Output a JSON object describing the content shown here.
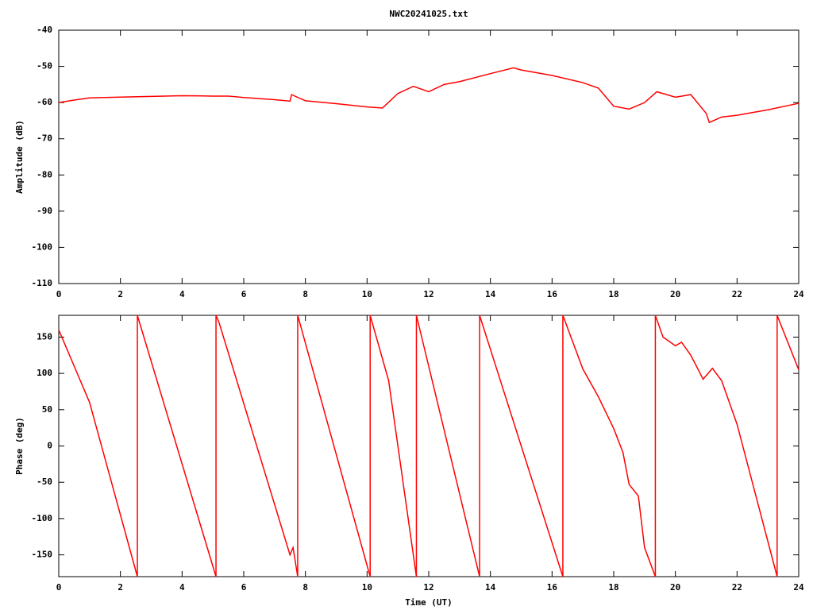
{
  "chart_data": [
    {
      "type": "line",
      "title": "NWC20241025.txt",
      "y_label": "Amplitude (dB)",
      "color": "#ff0000",
      "x": [
        0,
        0.5,
        1,
        2,
        3,
        4,
        5,
        5.5,
        6,
        7,
        7.5,
        7.55,
        8,
        9,
        10,
        10.5,
        11,
        11.5,
        12,
        12.5,
        13,
        14,
        14.75,
        15,
        16,
        17,
        17.5,
        18,
        18.5,
        19,
        19.4,
        20,
        20.5,
        21,
        21.1,
        21.5,
        22,
        23,
        24
      ],
      "values": [
        -60,
        -59.3,
        -58.7,
        -58.5,
        -58.3,
        -58.1,
        -58.2,
        -58.2,
        -58.6,
        -59.2,
        -59.6,
        -57.8,
        -59.5,
        -60.3,
        -61.2,
        -61.5,
        -57.5,
        -55.5,
        -57,
        -55,
        -54.2,
        -52,
        -50.4,
        -51,
        -52.5,
        -54.5,
        -56,
        -61,
        -61.8,
        -60,
        -57,
        -58.5,
        -57.8,
        -63,
        -65.5,
        -64,
        -63.5,
        -62,
        -60.2
      ],
      "xlim": [
        0,
        24
      ],
      "xticks": [
        0,
        2,
        4,
        6,
        8,
        10,
        12,
        14,
        16,
        18,
        20,
        22,
        24
      ],
      "ylim": [
        -110,
        -40
      ],
      "yticks": [
        -40,
        -50,
        -60,
        -70,
        -80,
        -90,
        -100,
        -110
      ]
    },
    {
      "type": "line",
      "x_label": "Time (UT)",
      "y_label": "Phase (deg)",
      "color": "#ff0000",
      "x": [
        0,
        0.7,
        1,
        2.55,
        2.55,
        5.1,
        5.1,
        5.2,
        7.5,
        7.6,
        7.75,
        7.75,
        10.1,
        10.1,
        10.7,
        11.6,
        11.6,
        13.65,
        13.65,
        16.35,
        16.35,
        17,
        17.5,
        18,
        18.3,
        18.5,
        18.8,
        19,
        19.35,
        19.35,
        19.6,
        20,
        20.2,
        20.5,
        20.9,
        21.2,
        21.5,
        22,
        23.3,
        23.3,
        24
      ],
      "values": [
        160,
        90,
        60,
        -180,
        180,
        -180,
        180,
        170,
        -150,
        -140,
        -180,
        180,
        -180,
        180,
        90,
        -180,
        180,
        -180,
        180,
        -180,
        180,
        106,
        68,
        24,
        -9,
        -53,
        -69,
        -140,
        -180,
        180,
        150,
        138,
        143,
        125,
        92,
        107,
        90,
        30,
        -180,
        180,
        105
      ],
      "xlim": [
        0,
        24
      ],
      "xticks": [
        0,
        2,
        4,
        6,
        8,
        10,
        12,
        14,
        16,
        18,
        20,
        22,
        24
      ],
      "ylim": [
        -180,
        180
      ],
      "yticks": [
        150,
        100,
        50,
        0,
        -50,
        -100,
        -150
      ]
    }
  ]
}
